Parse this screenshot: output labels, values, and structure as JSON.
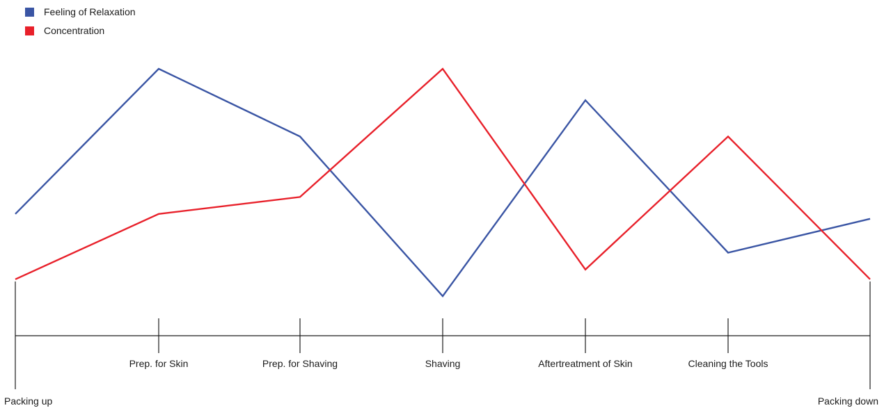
{
  "chart_data": {
    "type": "line",
    "title": "",
    "xlabel": "",
    "ylabel": "",
    "categories": [
      "Packing up",
      "Prep. for Skin",
      "Prep. for Shaving",
      "Shaving",
      "Aftertreatment of Skin",
      "Cleaning the Tools",
      "Packing down"
    ],
    "ylim": [
      0,
      10
    ],
    "grid": false,
    "legend_position": "top-left",
    "series": [
      {
        "name": "Feeling of Relaxation",
        "color": "#3a55a4",
        "values": [
          4,
          10,
          7.2,
          0.6,
          8.7,
          2.4,
          3.8
        ]
      },
      {
        "name": "Concentration",
        "color": "#e8202a",
        "values": [
          1.3,
          4,
          4.7,
          10,
          1.7,
          7.2,
          1.3
        ]
      }
    ]
  }
}
